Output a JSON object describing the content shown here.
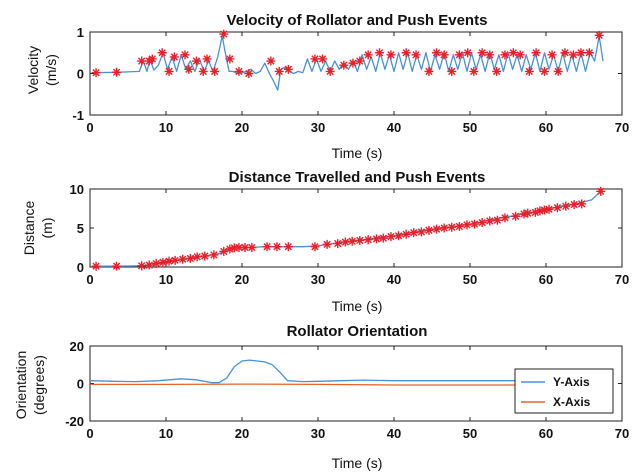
{
  "chart_data": [
    {
      "type": "line",
      "title": "Velocity of Rollator and Push Events",
      "xlabel": "Time (s)",
      "ylabel_lines": [
        "Velocity",
        "(m/s)"
      ],
      "xlim": [
        0,
        70
      ],
      "ylim": [
        -1,
        1
      ],
      "xticks": [
        0,
        10,
        20,
        30,
        40,
        50,
        60,
        70
      ],
      "yticks": [
        -1,
        0,
        1
      ],
      "grid": false,
      "series": [
        {
          "color": "#4a90d9",
          "x": [
            0.5,
            3.5,
            6.5,
            7,
            7.5,
            7.9,
            8.4,
            9,
            9.6,
            10.2,
            10.8,
            11.4,
            12,
            12.6,
            13.2,
            13.8,
            14.4,
            15,
            15.6,
            16.2,
            16.8,
            17.4,
            17.8,
            18.3,
            18.8,
            19.4,
            20,
            20.6,
            21.2,
            21.8,
            22.4,
            23,
            23.6,
            24.2,
            24.7,
            25.1,
            25.6,
            26.2,
            26.8,
            27.4,
            28,
            28.6,
            29.2,
            29.8,
            30.4,
            31,
            31.6,
            32.2,
            32.8,
            33.4,
            34,
            34.6,
            35.2,
            35.8,
            36.4,
            37,
            37.6,
            38.2,
            38.8,
            39.4,
            40,
            40.6,
            41.2,
            41.8,
            42.4,
            43,
            43.6,
            44.2,
            44.8,
            45.4,
            46,
            46.6,
            47.2,
            47.8,
            48.4,
            49,
            49.6,
            50.2,
            50.8,
            51.4,
            52,
            52.6,
            53.2,
            53.8,
            54.4,
            55,
            55.6,
            56.2,
            56.8,
            57.4,
            58,
            58.6,
            59.2,
            59.8,
            60.4,
            61,
            61.6,
            62.2,
            62.8,
            63.4,
            64,
            64.6,
            65.2,
            65.8,
            66.4,
            67,
            67.5
          ],
          "y": [
            0.02,
            0.03,
            0.05,
            0.3,
            0.05,
            0.35,
            0.08,
            0.2,
            0.5,
            0.1,
            0.4,
            0.05,
            0.45,
            0.1,
            0.3,
            0.05,
            0.35,
            0.05,
            0.3,
            0.05,
            0.4,
            0.9,
            0.5,
            0.05,
            0.05,
            0.0,
            0.02,
            0.05,
            0.1,
            0.0,
            0.05,
            0.25,
            0.0,
            -0.2,
            -0.4,
            0.1,
            0.15,
            0.05,
            0.0,
            0.05,
            0.02,
            0.35,
            0.05,
            0.35,
            0.05,
            0.3,
            0.05,
            0.3,
            0.1,
            0.25,
            0.1,
            0.3,
            0.05,
            0.45,
            0.1,
            0.4,
            0.05,
            0.5,
            0.1,
            0.45,
            0.05,
            0.5,
            0.1,
            0.5,
            0.05,
            0.45,
            0.1,
            0.5,
            0.05,
            0.45,
            0.1,
            0.5,
            0.05,
            0.45,
            0.1,
            0.5,
            0.05,
            0.5,
            0.1,
            0.45,
            0.05,
            0.5,
            0.1,
            0.45,
            0.05,
            0.5,
            0.1,
            0.45,
            0.05,
            0.45,
            0.1,
            0.5,
            0.05,
            0.5,
            0.1,
            0.45,
            0.05,
            0.5,
            0.05,
            0.45,
            0.05,
            0.5,
            0.05,
            0.5,
            0.3,
            0.9,
            0.3
          ]
        }
      ],
      "events": {
        "marker": "*",
        "color": "#e8202a",
        "x": [
          0.8,
          3.5,
          6.8,
          7.8,
          8.2,
          9.5,
          10.4,
          11.1,
          12.5,
          13.0,
          14.0,
          14.9,
          15.4,
          16.4,
          17.6,
          18.4,
          19.6,
          20.9,
          23.8,
          24.9,
          26.1,
          29.6,
          30.6,
          31.6,
          33.4,
          34.6,
          35.5,
          36.6,
          38.1,
          39.6,
          41.6,
          42.9,
          44.6,
          45.6,
          46.6,
          47.6,
          48.6,
          49.7,
          50.5,
          51.6,
          52.6,
          53.5,
          54.6,
          55.7,
          56.6,
          57.8,
          58.7,
          59.8,
          60.8,
          61.6,
          62.5,
          63.6,
          64.6,
          65.7,
          67.0
        ],
        "y": [
          0.02,
          0.03,
          0.3,
          0.3,
          0.35,
          0.5,
          0.05,
          0.4,
          0.45,
          0.1,
          0.3,
          0.05,
          0.35,
          0.05,
          0.95,
          0.35,
          0.05,
          0.0,
          0.3,
          0.05,
          0.1,
          0.35,
          0.35,
          0.05,
          0.2,
          0.25,
          0.3,
          0.45,
          0.5,
          0.45,
          0.5,
          0.45,
          0.05,
          0.5,
          0.45,
          0.05,
          0.45,
          0.5,
          0.05,
          0.5,
          0.45,
          0.05,
          0.45,
          0.5,
          0.45,
          0.05,
          0.5,
          0.05,
          0.45,
          0.05,
          0.5,
          0.45,
          0.5,
          0.5,
          0.92
        ]
      }
    },
    {
      "type": "line",
      "title": "Distance Travelled and Push Events",
      "xlabel": "Time (s)",
      "ylabel_lines": [
        "Distance",
        "(m)"
      ],
      "xlim": [
        0,
        70
      ],
      "ylim": [
        0,
        10
      ],
      "xticks": [
        0,
        10,
        20,
        30,
        40,
        50,
        60,
        70
      ],
      "yticks": [
        0,
        5,
        10
      ],
      "grid": false,
      "series": [
        {
          "color": "#4a90d9",
          "x": [
            0.5,
            3.5,
            7,
            8,
            9,
            10,
            11,
            12,
            13,
            14,
            15,
            16,
            17,
            17.6,
            18.4,
            19,
            20,
            21,
            22,
            23,
            24,
            25,
            26,
            28,
            30,
            32,
            34,
            36,
            38,
            40,
            42,
            44,
            46,
            48,
            50,
            52,
            54,
            56,
            58,
            60,
            62,
            64,
            66,
            67.2
          ],
          "y": [
            0.1,
            0.1,
            0.15,
            0.25,
            0.4,
            0.6,
            0.8,
            0.95,
            1.1,
            1.25,
            1.4,
            1.55,
            1.7,
            2.0,
            2.3,
            2.45,
            2.5,
            2.5,
            2.55,
            2.6,
            2.6,
            2.6,
            2.6,
            2.6,
            2.7,
            3.0,
            3.3,
            3.5,
            3.8,
            4.0,
            4.4,
            4.7,
            5.0,
            5.2,
            5.5,
            5.9,
            6.3,
            6.6,
            7.0,
            7.4,
            7.8,
            8.1,
            8.6,
            9.7
          ]
        }
      ],
      "events": {
        "marker": "*",
        "color": "#e8202a",
        "x": [
          0.8,
          3.5,
          6.8,
          7.8,
          8.7,
          9.6,
          10.4,
          11.2,
          12.2,
          13.2,
          14.1,
          15.1,
          16.3,
          17.6,
          18.4,
          19.0,
          19.6,
          20.4,
          21.3,
          23.3,
          24.6,
          26.1,
          29.6,
          31.2,
          32.6,
          33.6,
          34.5,
          35.5,
          36.6,
          37.7,
          38.6,
          39.6,
          40.6,
          41.6,
          42.6,
          43.6,
          44.6,
          45.6,
          46.6,
          47.6,
          48.6,
          49.6,
          50.6,
          51.6,
          52.6,
          53.6,
          54.6,
          56.0,
          57.1,
          57.6,
          58.6,
          59.2,
          59.8,
          60.4,
          61.5,
          62.6,
          63.7,
          64.7,
          67.2
        ],
        "y": [
          0.1,
          0.1,
          0.15,
          0.25,
          0.45,
          0.6,
          0.75,
          0.85,
          1.0,
          1.1,
          1.3,
          1.4,
          1.55,
          2.0,
          2.3,
          2.45,
          2.5,
          2.5,
          2.5,
          2.6,
          2.6,
          2.6,
          2.6,
          2.9,
          3.0,
          3.2,
          3.3,
          3.4,
          3.5,
          3.6,
          3.7,
          3.9,
          4.0,
          4.2,
          4.4,
          4.5,
          4.7,
          4.85,
          5.0,
          5.1,
          5.2,
          5.4,
          5.5,
          5.7,
          5.9,
          6.0,
          6.3,
          6.5,
          6.8,
          6.9,
          7.0,
          7.2,
          7.3,
          7.4,
          7.6,
          7.8,
          8.0,
          8.1,
          9.7
        ]
      }
    },
    {
      "type": "line",
      "title": "Rollator Orientation",
      "xlabel": "Time (s)",
      "ylabel_lines": [
        "Orientation",
        "(degrees)"
      ],
      "xlim": [
        0,
        70
      ],
      "ylim": [
        -20,
        20
      ],
      "xticks": [
        0,
        10,
        20,
        30,
        40,
        50,
        60,
        70
      ],
      "yticks": [
        -20,
        0,
        20
      ],
      "grid": false,
      "legend": "right",
      "series": [
        {
          "name": "Y-Axis",
          "color": "#4a90d9",
          "x": [
            0,
            3,
            6,
            9,
            12,
            14,
            16,
            17,
            18,
            19,
            20,
            21,
            22,
            23,
            24,
            25,
            26,
            28,
            30,
            33,
            36,
            40,
            45,
            50,
            55,
            60,
            65,
            67.5
          ],
          "y": [
            1.5,
            1.2,
            1.0,
            1.5,
            2.5,
            2.0,
            0.5,
            0.5,
            3,
            9,
            12,
            12.5,
            12,
            11.5,
            10,
            6,
            1.5,
            1.0,
            1.2,
            1.5,
            1.8,
            1.5,
            1.5,
            1.5,
            1.5,
            1.5,
            1.5,
            1.5
          ]
        },
        {
          "name": "X-Axis",
          "color": "#e8602a",
          "x": [
            0,
            10,
            20,
            30,
            40,
            50,
            60,
            67.5
          ],
          "y": [
            -0.5,
            -0.5,
            -0.3,
            -0.5,
            -0.8,
            -0.8,
            -0.8,
            -0.8
          ]
        }
      ]
    }
  ]
}
